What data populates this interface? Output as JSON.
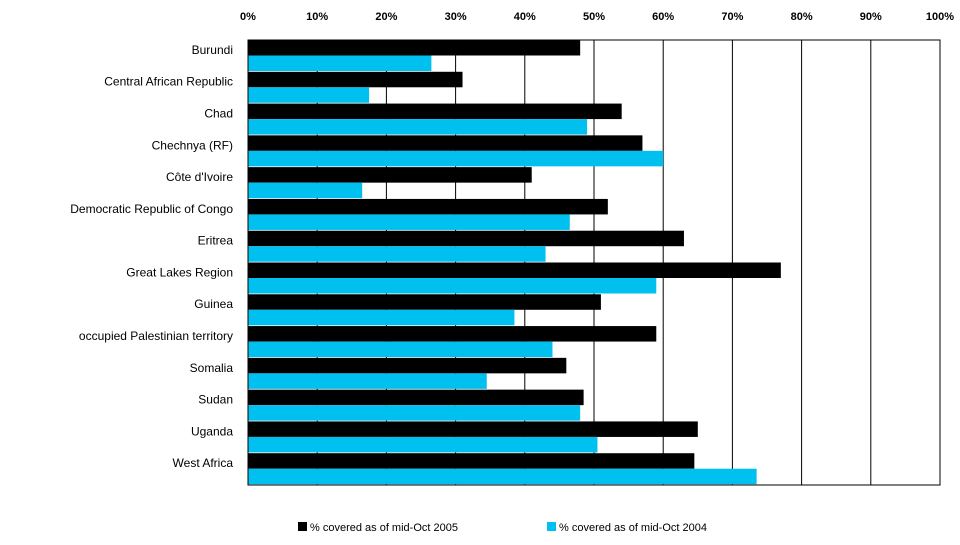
{
  "chart_data": {
    "type": "bar",
    "orientation": "horizontal",
    "categories": [
      "Burundi",
      "Central African Republic",
      "Chad",
      "Chechnya (RF)",
      "Côte d'Ivoire",
      "Democratic Republic of Congo",
      "Eritrea",
      "Great Lakes Region",
      "Guinea",
      "occupied Palestinian territory",
      "Somalia",
      "Sudan",
      "Uganda",
      "West Africa"
    ],
    "series": [
      {
        "name": "% covered as of mid-Oct 2005",
        "color": "#000000",
        "values": [
          48,
          31,
          54,
          57,
          41,
          52,
          63,
          77,
          51,
          59,
          46,
          48.5,
          65,
          64.5
        ]
      },
      {
        "name": "% covered as of mid-Oct 2004",
        "color": "#00c0f0",
        "values": [
          26.5,
          17.5,
          49,
          60,
          16.5,
          46.5,
          43,
          59,
          38.5,
          44,
          34.5,
          48,
          50.5,
          73.5
        ]
      }
    ],
    "x_ticks": [
      "0%",
      "10%",
      "20%",
      "30%",
      "40%",
      "50%",
      "60%",
      "70%",
      "80%",
      "90%",
      "100%"
    ],
    "xlim": [
      0,
      100
    ],
    "grid": true,
    "legend_position": "bottom"
  }
}
